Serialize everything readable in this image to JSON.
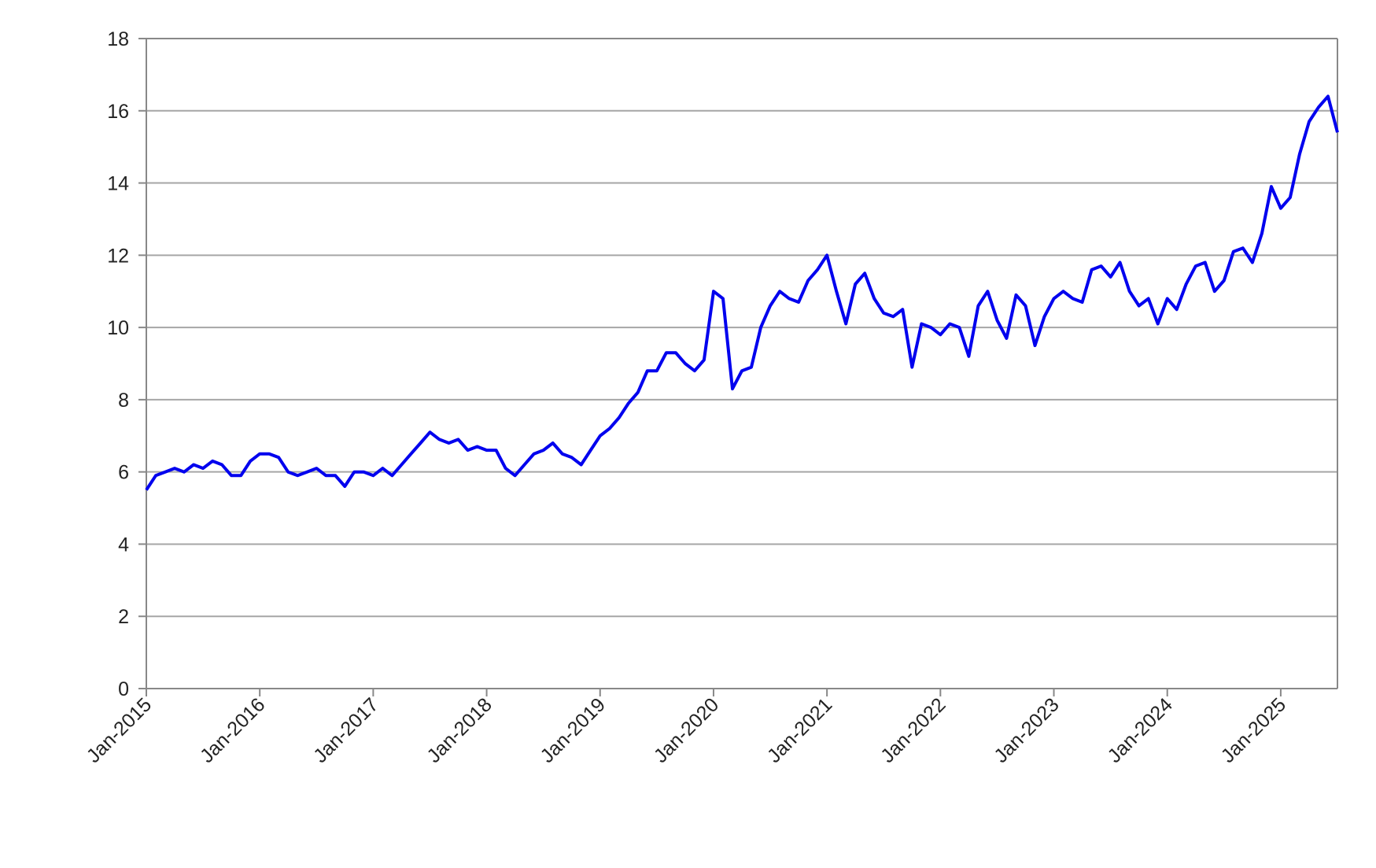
{
  "chart_data": {
    "type": "line",
    "color": "#0000ee",
    "grid": true,
    "x": [
      "2015-01",
      "2015-02",
      "2015-03",
      "2015-04",
      "2015-05",
      "2015-06",
      "2015-07",
      "2015-08",
      "2015-09",
      "2015-10",
      "2015-11",
      "2015-12",
      "2016-01",
      "2016-02",
      "2016-03",
      "2016-04",
      "2016-05",
      "2016-06",
      "2016-07",
      "2016-08",
      "2016-09",
      "2016-10",
      "2016-11",
      "2016-12",
      "2017-01",
      "2017-02",
      "2017-03",
      "2017-04",
      "2017-05",
      "2017-06",
      "2017-07",
      "2017-08",
      "2017-09",
      "2017-10",
      "2017-11",
      "2017-12",
      "2018-01",
      "2018-02",
      "2018-03",
      "2018-04",
      "2018-05",
      "2018-06",
      "2018-07",
      "2018-08",
      "2018-09",
      "2018-10",
      "2018-11",
      "2018-12",
      "2019-01",
      "2019-02",
      "2019-03",
      "2019-04",
      "2019-05",
      "2019-06",
      "2019-07",
      "2019-08",
      "2019-09",
      "2019-10",
      "2019-11",
      "2019-12",
      "2020-01",
      "2020-02",
      "2020-03",
      "2020-04",
      "2020-05",
      "2020-06",
      "2020-07",
      "2020-08",
      "2020-09",
      "2020-10",
      "2020-11",
      "2020-12",
      "2021-01",
      "2021-02",
      "2021-03",
      "2021-04",
      "2021-05",
      "2021-06",
      "2021-07",
      "2021-08",
      "2021-09",
      "2021-10",
      "2021-11",
      "2021-12",
      "2022-01",
      "2022-02",
      "2022-03",
      "2022-04",
      "2022-05",
      "2022-06",
      "2022-07",
      "2022-08",
      "2022-09",
      "2022-10",
      "2022-11",
      "2022-12",
      "2023-01",
      "2023-02",
      "2023-03",
      "2023-04",
      "2023-05",
      "2023-06",
      "2023-07",
      "2023-08",
      "2023-09",
      "2023-10",
      "2023-11",
      "2023-12",
      "2024-01",
      "2024-02",
      "2024-03",
      "2024-04",
      "2024-05",
      "2024-06",
      "2024-07",
      "2024-08",
      "2024-09",
      "2024-10",
      "2024-11",
      "2024-12",
      "2025-01",
      "2025-02",
      "2025-03",
      "2025-04",
      "2025-05",
      "2025-06",
      "2025-07"
    ],
    "values": [
      5.5,
      5.9,
      6.0,
      6.1,
      6.0,
      6.2,
      6.1,
      6.3,
      6.2,
      5.9,
      5.9,
      6.3,
      6.5,
      6.5,
      6.4,
      6.0,
      5.9,
      6.0,
      6.1,
      5.9,
      5.9,
      5.6,
      6.0,
      6.0,
      5.9,
      6.1,
      5.9,
      6.2,
      6.5,
      6.8,
      7.1,
      6.9,
      6.8,
      6.9,
      6.6,
      6.7,
      6.6,
      6.6,
      6.1,
      5.9,
      6.2,
      6.5,
      6.6,
      6.8,
      6.5,
      6.4,
      6.2,
      6.6,
      7.0,
      7.2,
      7.5,
      7.9,
      8.2,
      8.8,
      8.8,
      9.3,
      9.3,
      9.0,
      8.8,
      9.1,
      11.0,
      10.8,
      8.3,
      8.8,
      8.9,
      10.0,
      10.6,
      11.0,
      10.8,
      10.7,
      11.3,
      11.6,
      12.0,
      11.0,
      10.1,
      11.2,
      11.5,
      10.8,
      10.4,
      10.3,
      10.5,
      8.9,
      10.1,
      10.0,
      9.8,
      10.1,
      10.0,
      9.2,
      10.6,
      11.0,
      10.2,
      9.7,
      10.9,
      10.6,
      9.5,
      10.3,
      10.8,
      11.0,
      10.8,
      10.7,
      11.6,
      11.7,
      11.4,
      11.8,
      11.0,
      10.6,
      10.8,
      10.1,
      10.8,
      10.5,
      11.2,
      11.7,
      11.8,
      11.0,
      11.3,
      12.1,
      12.2,
      11.8,
      12.6,
      13.9,
      13.3,
      13.6,
      14.8,
      15.7,
      16.1,
      16.4,
      15.4
    ],
    "xlim": [
      "2015-01",
      "2025-07"
    ],
    "xticks": [
      {
        "value": "2015-01",
        "label": "Jan-2015"
      },
      {
        "value": "2016-01",
        "label": "Jan-2016"
      },
      {
        "value": "2017-01",
        "label": "Jan-2017"
      },
      {
        "value": "2018-01",
        "label": "Jan-2018"
      },
      {
        "value": "2019-01",
        "label": "Jan-2019"
      },
      {
        "value": "2020-01",
        "label": "Jan-2020"
      },
      {
        "value": "2021-01",
        "label": "Jan-2021"
      },
      {
        "value": "2022-01",
        "label": "Jan-2022"
      },
      {
        "value": "2023-01",
        "label": "Jan-2023"
      },
      {
        "value": "2024-01",
        "label": "Jan-2024"
      },
      {
        "value": "2025-01",
        "label": "Jan-2025"
      }
    ],
    "ylim": [
      0,
      18
    ],
    "yticks": [
      0,
      2,
      4,
      6,
      8,
      10,
      12,
      14,
      16,
      18
    ]
  }
}
